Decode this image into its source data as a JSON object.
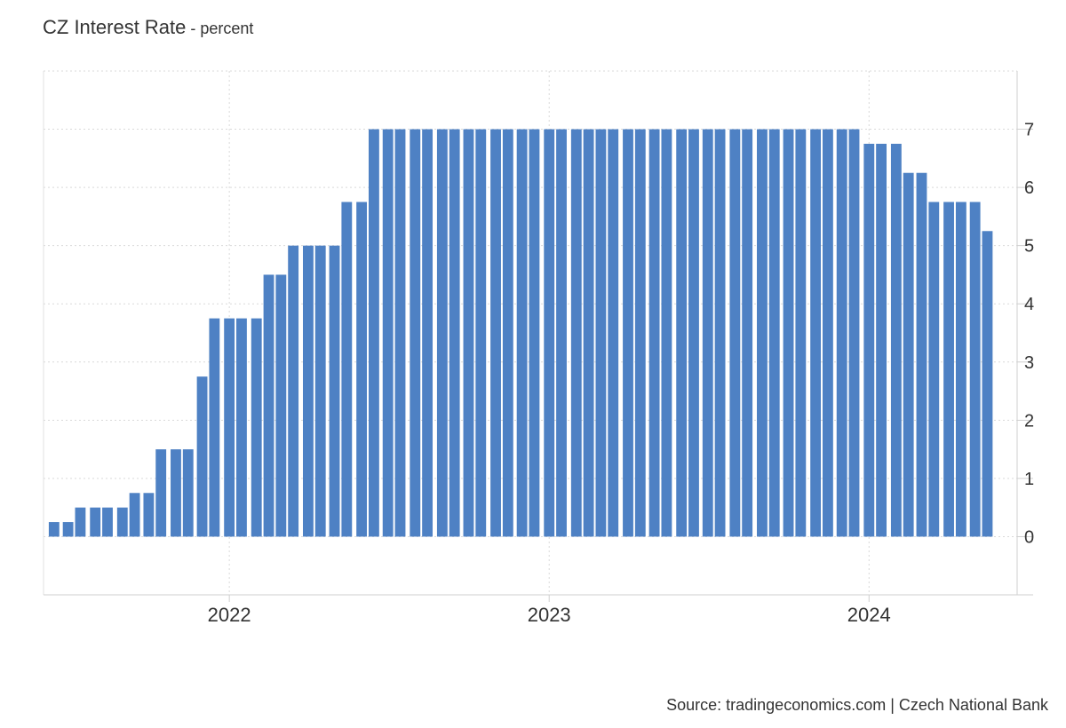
{
  "header": {
    "title": "CZ Interest Rate",
    "unit_suffix": " - percent"
  },
  "footer": {
    "source": "Source: tradingeconomics.com | Czech National Bank"
  },
  "chart_data": {
    "type": "bar",
    "title": "CZ Interest Rate",
    "subtitle": "percent",
    "xlabel": "",
    "ylabel": "",
    "bar_color": "#4e81c4",
    "grid": true,
    "legend": "none",
    "y_axis_side": "right",
    "ylim": [
      -1,
      8
    ],
    "y_ticks": [
      0,
      1,
      2,
      3,
      4,
      5,
      6,
      7
    ],
    "x_tick_labels": [
      "2022",
      "2023",
      "2024"
    ],
    "x_tick_dates": [
      "2022-01-01",
      "2023-01-01",
      "2024-01-01"
    ],
    "xlim": [
      "2021-06-03",
      "2024-06-18"
    ],
    "bars": [
      {
        "date": "2021-06-15",
        "value": 0.25
      },
      {
        "date": "2021-07-01",
        "value": 0.25
      },
      {
        "date": "2021-07-15",
        "value": 0.5
      },
      {
        "date": "2021-08-01",
        "value": 0.5
      },
      {
        "date": "2021-08-15",
        "value": 0.5
      },
      {
        "date": "2021-09-01",
        "value": 0.5
      },
      {
        "date": "2021-09-15",
        "value": 0.75
      },
      {
        "date": "2021-10-01",
        "value": 0.75
      },
      {
        "date": "2021-10-15",
        "value": 1.5
      },
      {
        "date": "2021-11-01",
        "value": 1.5
      },
      {
        "date": "2021-11-15",
        "value": 1.5
      },
      {
        "date": "2021-12-01",
        "value": 2.75
      },
      {
        "date": "2021-12-15",
        "value": 3.75
      },
      {
        "date": "2022-01-01",
        "value": 3.75
      },
      {
        "date": "2022-01-15",
        "value": 3.75
      },
      {
        "date": "2022-02-01",
        "value": 3.75
      },
      {
        "date": "2022-02-15",
        "value": 4.5
      },
      {
        "date": "2022-03-01",
        "value": 4.5
      },
      {
        "date": "2022-03-15",
        "value": 5
      },
      {
        "date": "2022-04-01",
        "value": 5
      },
      {
        "date": "2022-04-15",
        "value": 5
      },
      {
        "date": "2022-05-01",
        "value": 5
      },
      {
        "date": "2022-05-15",
        "value": 5.75
      },
      {
        "date": "2022-06-01",
        "value": 5.75
      },
      {
        "date": "2022-06-15",
        "value": 7
      },
      {
        "date": "2022-07-01",
        "value": 7
      },
      {
        "date": "2022-07-15",
        "value": 7
      },
      {
        "date": "2022-08-01",
        "value": 7
      },
      {
        "date": "2022-08-15",
        "value": 7
      },
      {
        "date": "2022-09-01",
        "value": 7
      },
      {
        "date": "2022-09-15",
        "value": 7
      },
      {
        "date": "2022-10-01",
        "value": 7
      },
      {
        "date": "2022-10-15",
        "value": 7
      },
      {
        "date": "2022-11-01",
        "value": 7
      },
      {
        "date": "2022-11-15",
        "value": 7
      },
      {
        "date": "2022-12-01",
        "value": 7
      },
      {
        "date": "2022-12-15",
        "value": 7
      },
      {
        "date": "2023-01-01",
        "value": 7
      },
      {
        "date": "2023-01-15",
        "value": 7
      },
      {
        "date": "2023-02-01",
        "value": 7
      },
      {
        "date": "2023-02-15",
        "value": 7
      },
      {
        "date": "2023-03-01",
        "value": 7
      },
      {
        "date": "2023-03-15",
        "value": 7
      },
      {
        "date": "2023-04-01",
        "value": 7
      },
      {
        "date": "2023-04-15",
        "value": 7
      },
      {
        "date": "2023-05-01",
        "value": 7
      },
      {
        "date": "2023-05-15",
        "value": 7
      },
      {
        "date": "2023-06-01",
        "value": 7
      },
      {
        "date": "2023-06-15",
        "value": 7
      },
      {
        "date": "2023-07-01",
        "value": 7
      },
      {
        "date": "2023-07-15",
        "value": 7
      },
      {
        "date": "2023-08-01",
        "value": 7
      },
      {
        "date": "2023-08-15",
        "value": 7
      },
      {
        "date": "2023-09-01",
        "value": 7
      },
      {
        "date": "2023-09-15",
        "value": 7
      },
      {
        "date": "2023-10-01",
        "value": 7
      },
      {
        "date": "2023-10-15",
        "value": 7
      },
      {
        "date": "2023-11-01",
        "value": 7
      },
      {
        "date": "2023-11-15",
        "value": 7
      },
      {
        "date": "2023-12-01",
        "value": 7
      },
      {
        "date": "2023-12-15",
        "value": 7
      },
      {
        "date": "2024-01-01",
        "value": 6.75
      },
      {
        "date": "2024-01-15",
        "value": 6.75
      },
      {
        "date": "2024-02-01",
        "value": 6.75
      },
      {
        "date": "2024-02-15",
        "value": 6.25
      },
      {
        "date": "2024-03-01",
        "value": 6.25
      },
      {
        "date": "2024-03-15",
        "value": 5.75
      },
      {
        "date": "2024-04-01",
        "value": 5.75
      },
      {
        "date": "2024-04-15",
        "value": 5.75
      },
      {
        "date": "2024-05-01",
        "value": 5.75
      },
      {
        "date": "2024-05-15",
        "value": 5.25
      }
    ]
  }
}
